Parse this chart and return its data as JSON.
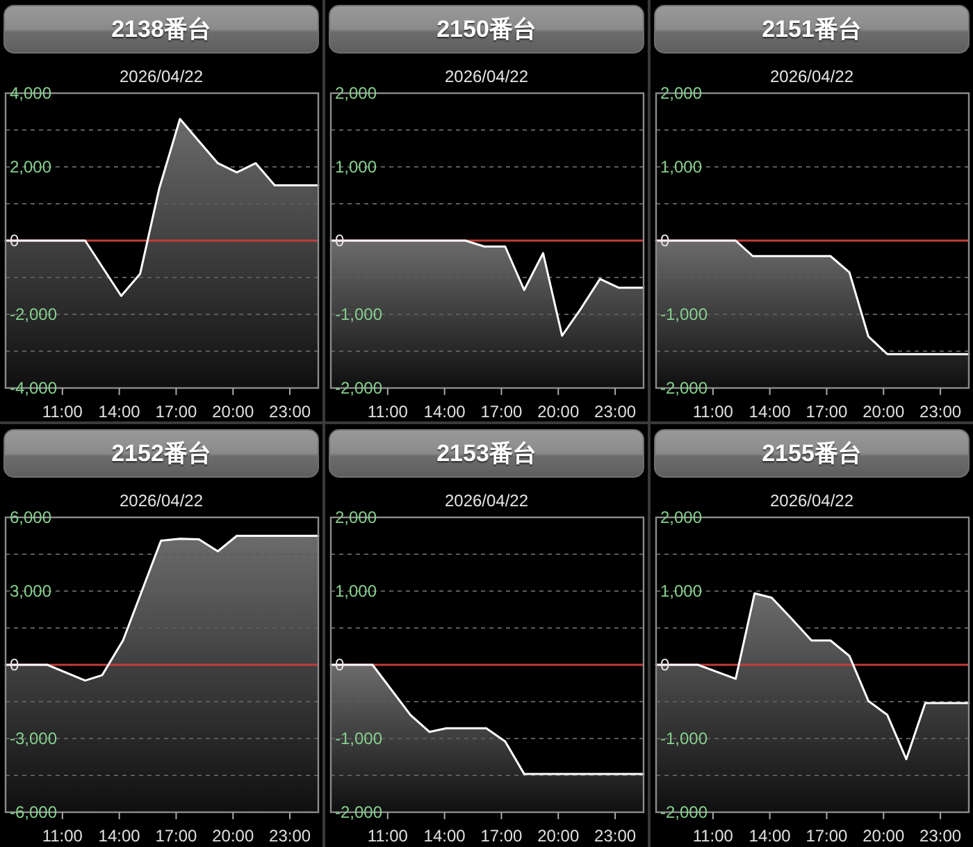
{
  "chart_data": [
    {
      "type": "line",
      "title": "2138番台",
      "subtitle": "2026/04/22",
      "color": "#ffffff",
      "x": [
        8,
        12.2,
        14.1,
        15.1,
        16.1,
        17.2,
        18.2,
        19.2,
        20.2,
        21.2,
        22.2,
        24.5
      ],
      "values": [
        0,
        0,
        -1500,
        -900,
        1400,
        3300,
        2700,
        2100,
        1850,
        2100,
        1500,
        1500
      ],
      "lower": [
        -4000,
        -4000,
        -4000,
        -4000,
        -4000,
        -4000,
        -4000,
        -4000,
        -4000,
        -4000,
        -4000,
        -4000
      ],
      "upper": [
        0,
        0,
        -1500,
        -900,
        1400,
        3300,
        2700,
        2100,
        1850,
        2100,
        1500,
        1500
      ],
      "xlim": [
        8,
        24.5
      ],
      "xticks": [
        {
          "value": 11,
          "label": "11:00"
        },
        {
          "value": 14,
          "label": "14:00"
        },
        {
          "value": 17,
          "label": "17:00"
        },
        {
          "value": 20,
          "label": "20:00"
        },
        {
          "value": 23,
          "label": "23:00"
        }
      ],
      "ylim": [
        -4000,
        4000
      ],
      "yticks": [
        {
          "value": -4000,
          "label": "-4,000"
        },
        {
          "value": -3000,
          "label": null
        },
        {
          "value": -2000,
          "label": "-2,000"
        },
        {
          "value": -1000,
          "label": null
        },
        {
          "value": 0,
          "label": "0"
        },
        {
          "value": 1000,
          "label": null
        },
        {
          "value": 2000,
          "label": "2,000"
        },
        {
          "value": 3000,
          "label": null
        },
        {
          "value": 4000,
          "label": "4,000"
        }
      ],
      "grid": "y",
      "ref_lines": [
        {
          "axis": "y",
          "value": 0,
          "color": "#c43c3c"
        }
      ]
    },
    {
      "type": "line",
      "title": "2150番台",
      "subtitle": "2026/04/22",
      "color": "#ffffff",
      "x": [
        8,
        15.1,
        16.1,
        17.2,
        18.2,
        19.2,
        20.2,
        21.2,
        22.2,
        23.2,
        24.5
      ],
      "values": [
        0,
        0,
        -80,
        -80,
        -670,
        -170,
        -1290,
        -920,
        -520,
        -640,
        -640
      ],
      "lower": [
        -2000,
        -2000,
        -2000,
        -2000,
        -2000,
        -2000,
        -2000,
        -2000,
        -2000,
        -2000,
        -2000
      ],
      "upper": [
        0,
        0,
        -80,
        -80,
        -670,
        -170,
        -1290,
        -920,
        -520,
        -640,
        -640
      ],
      "xlim": [
        8,
        24.5
      ],
      "xticks": [
        {
          "value": 11,
          "label": "11:00"
        },
        {
          "value": 14,
          "label": "14:00"
        },
        {
          "value": 17,
          "label": "17:00"
        },
        {
          "value": 20,
          "label": "20:00"
        },
        {
          "value": 23,
          "label": "23:00"
        }
      ],
      "ylim": [
        -2000,
        2000
      ],
      "yticks": [
        {
          "value": -2000,
          "label": "-2,000"
        },
        {
          "value": -1500,
          "label": null
        },
        {
          "value": -1000,
          "label": "-1,000"
        },
        {
          "value": -500,
          "label": null
        },
        {
          "value": 0,
          "label": "0"
        },
        {
          "value": 500,
          "label": null
        },
        {
          "value": 1000,
          "label": "1,000"
        },
        {
          "value": 1500,
          "label": null
        },
        {
          "value": 2000,
          "label": "2,000"
        }
      ],
      "grid": "y",
      "ref_lines": [
        {
          "axis": "y",
          "value": 0,
          "color": "#c43c3c"
        }
      ]
    },
    {
      "type": "line",
      "title": "2151番台",
      "subtitle": "2026/04/22",
      "color": "#ffffff",
      "x": [
        8,
        12.2,
        13.1,
        17.2,
        18.2,
        19.2,
        20.2,
        24.5
      ],
      "values": [
        0,
        0,
        -210,
        -210,
        -430,
        -1300,
        -1540,
        -1540
      ],
      "lower": [
        -2000,
        -2000,
        -2000,
        -2000,
        -2000,
        -2000,
        -2000,
        -2000
      ],
      "upper": [
        0,
        0,
        -210,
        -210,
        -430,
        -1300,
        -1540,
        -1540
      ],
      "xlim": [
        8,
        24.5
      ],
      "xticks": [
        {
          "value": 11,
          "label": "11:00"
        },
        {
          "value": 14,
          "label": "14:00"
        },
        {
          "value": 17,
          "label": "17:00"
        },
        {
          "value": 20,
          "label": "20:00"
        },
        {
          "value": 23,
          "label": "23:00"
        }
      ],
      "ylim": [
        -2000,
        2000
      ],
      "yticks": [
        {
          "value": -2000,
          "label": "-2,000"
        },
        {
          "value": -1500,
          "label": null
        },
        {
          "value": -1000,
          "label": "-1,000"
        },
        {
          "value": -500,
          "label": null
        },
        {
          "value": 0,
          "label": "0"
        },
        {
          "value": 500,
          "label": null
        },
        {
          "value": 1000,
          "label": "1,000"
        },
        {
          "value": 1500,
          "label": null
        },
        {
          "value": 2000,
          "label": "2,000"
        }
      ],
      "grid": "y",
      "ref_lines": [
        {
          "axis": "y",
          "value": 0,
          "color": "#c43c3c"
        }
      ]
    },
    {
      "type": "line",
      "title": "2152番台",
      "subtitle": "2026/04/22",
      "color": "#ffffff",
      "x": [
        8,
        10.2,
        12.2,
        13.1,
        14.2,
        16.2,
        17.2,
        18.2,
        19.2,
        20.2,
        24.5
      ],
      "values": [
        0,
        0,
        -640,
        -420,
        1000,
        5050,
        5130,
        5110,
        4620,
        5250,
        5250
      ],
      "lower": [
        -6000,
        -6000,
        -6000,
        -6000,
        -6000,
        -6000,
        -6000,
        -6000,
        -6000,
        -6000,
        -6000
      ],
      "upper": [
        0,
        0,
        -640,
        -420,
        1000,
        5050,
        5130,
        5110,
        4620,
        5250,
        5250
      ],
      "xlim": [
        8,
        24.5
      ],
      "xticks": [
        {
          "value": 11,
          "label": "11:00"
        },
        {
          "value": 14,
          "label": "14:00"
        },
        {
          "value": 17,
          "label": "17:00"
        },
        {
          "value": 20,
          "label": "20:00"
        },
        {
          "value": 23,
          "label": "23:00"
        }
      ],
      "ylim": [
        -6000,
        6000
      ],
      "yticks": [
        {
          "value": -6000,
          "label": "-6,000"
        },
        {
          "value": -4500,
          "label": null
        },
        {
          "value": -3000,
          "label": "-3,000"
        },
        {
          "value": -1500,
          "label": null
        },
        {
          "value": 0,
          "label": "0"
        },
        {
          "value": 1500,
          "label": null
        },
        {
          "value": 3000,
          "label": "3,000"
        },
        {
          "value": 4500,
          "label": null
        },
        {
          "value": 6000,
          "label": "6,000"
        }
      ],
      "grid": "y",
      "ref_lines": [
        {
          "axis": "y",
          "value": 0,
          "color": "#c43c3c"
        }
      ]
    },
    {
      "type": "line",
      "title": "2153番台",
      "subtitle": "2026/04/22",
      "color": "#ffffff",
      "x": [
        8,
        10.2,
        12.2,
        13.2,
        14.1,
        16.2,
        17.2,
        18.2,
        24.5
      ],
      "values": [
        0,
        0,
        -680,
        -910,
        -860,
        -860,
        -1040,
        -1480,
        -1480
      ],
      "lower": [
        -2000,
        -2000,
        -2000,
        -2000,
        -2000,
        -2000,
        -2000,
        -2000,
        -2000
      ],
      "upper": [
        0,
        0,
        -680,
        -910,
        -860,
        -860,
        -1040,
        -1480,
        -1480
      ],
      "xlim": [
        8,
        24.5
      ],
      "xticks": [
        {
          "value": 11,
          "label": "11:00"
        },
        {
          "value": 14,
          "label": "14:00"
        },
        {
          "value": 17,
          "label": "17:00"
        },
        {
          "value": 20,
          "label": "20:00"
        },
        {
          "value": 23,
          "label": "23:00"
        }
      ],
      "ylim": [
        -2000,
        2000
      ],
      "yticks": [
        {
          "value": -2000,
          "label": "-2,000"
        },
        {
          "value": -1500,
          "label": null
        },
        {
          "value": -1000,
          "label": "-1,000"
        },
        {
          "value": -500,
          "label": null
        },
        {
          "value": 0,
          "label": "0"
        },
        {
          "value": 500,
          "label": null
        },
        {
          "value": 1000,
          "label": "1,000"
        },
        {
          "value": 1500,
          "label": null
        },
        {
          "value": 2000,
          "label": "2,000"
        }
      ],
      "grid": "y",
      "ref_lines": [
        {
          "axis": "y",
          "value": 0,
          "color": "#c43c3c"
        }
      ]
    },
    {
      "type": "line",
      "title": "2155番台",
      "subtitle": "2026/04/22",
      "color": "#ffffff",
      "x": [
        8,
        10.2,
        12.2,
        13.2,
        14.1,
        15.1,
        16.2,
        17.2,
        18.2,
        19.2,
        20.2,
        21.2,
        22.2,
        24.5
      ],
      "values": [
        0,
        0,
        -190,
        970,
        910,
        640,
        330,
        330,
        120,
        -490,
        -680,
        -1280,
        -520,
        -520
      ],
      "lower": [
        -2000,
        -2000,
        -2000,
        -2000,
        -2000,
        -2000,
        -2000,
        -2000,
        -2000,
        -2000,
        -2000,
        -2000,
        -2000,
        -2000
      ],
      "upper": [
        0,
        0,
        -190,
        970,
        910,
        640,
        330,
        330,
        120,
        -490,
        -680,
        -1280,
        -520,
        -520
      ],
      "xlim": [
        8,
        24.5
      ],
      "xticks": [
        {
          "value": 11,
          "label": "11:00"
        },
        {
          "value": 14,
          "label": "14:00"
        },
        {
          "value": 17,
          "label": "17:00"
        },
        {
          "value": 20,
          "label": "20:00"
        },
        {
          "value": 23,
          "label": "23:00"
        }
      ],
      "ylim": [
        -2000,
        2000
      ],
      "yticks": [
        {
          "value": -2000,
          "label": "-2,000"
        },
        {
          "value": -1500,
          "label": null
        },
        {
          "value": -1000,
          "label": "-1,000"
        },
        {
          "value": -500,
          "label": null
        },
        {
          "value": 0,
          "label": "0"
        },
        {
          "value": 500,
          "label": null
        },
        {
          "value": 1000,
          "label": "1,000"
        },
        {
          "value": 1500,
          "label": null
        },
        {
          "value": 2000,
          "label": "2,000"
        }
      ],
      "grid": "y",
      "ref_lines": [
        {
          "axis": "y",
          "value": 0,
          "color": "#c43c3c"
        }
      ]
    }
  ]
}
